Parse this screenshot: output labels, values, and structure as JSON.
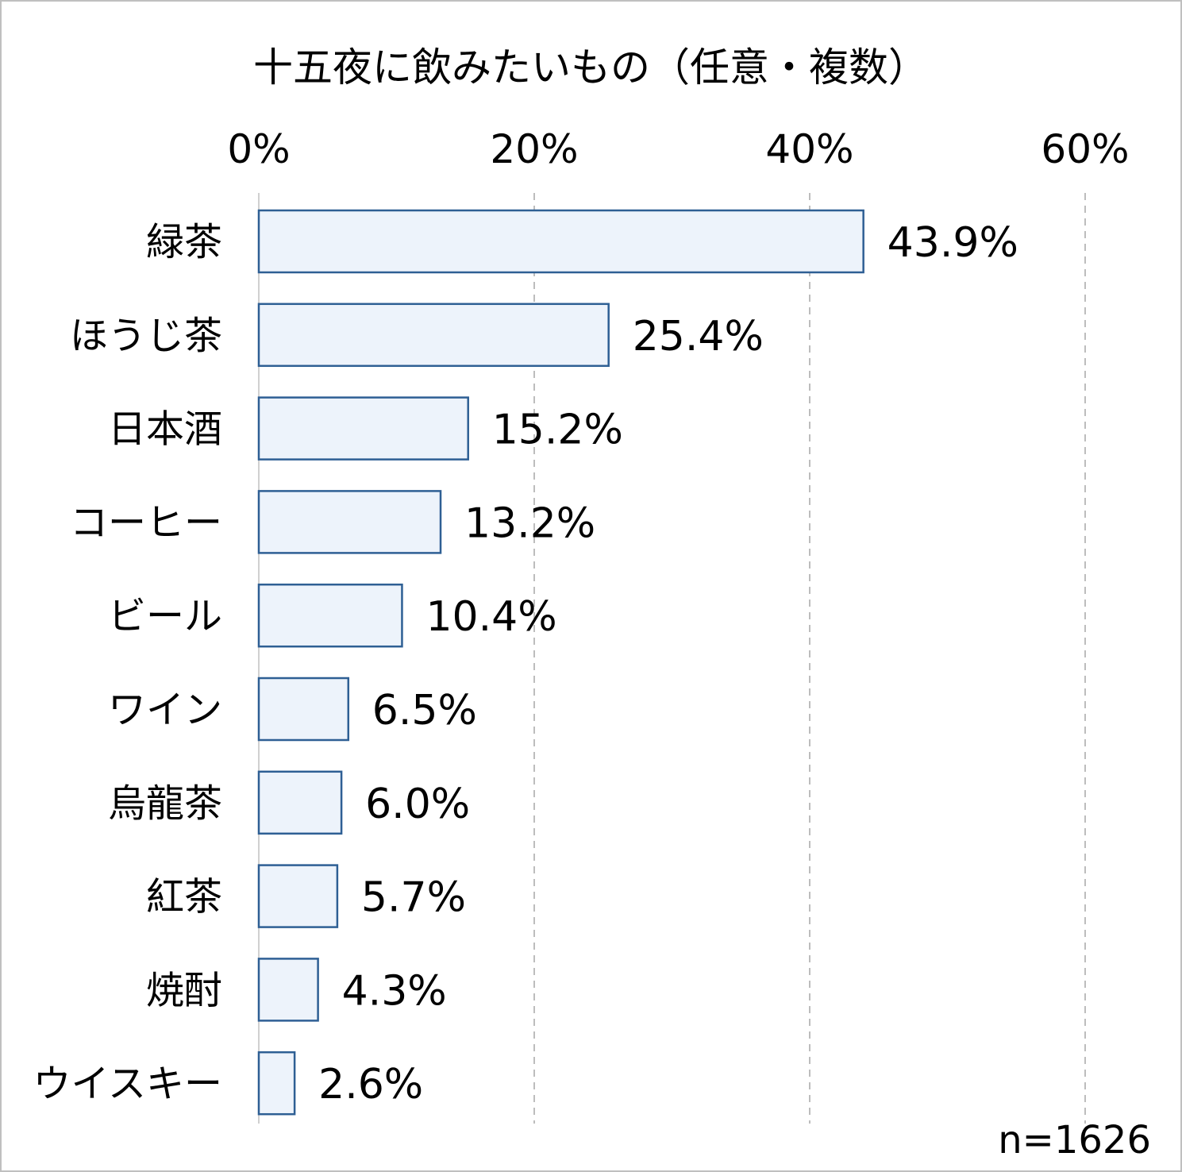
{
  "chart_data": {
    "type": "bar",
    "orientation": "horizontal",
    "title": "十五夜に飲みたいもの（任意・複数）",
    "categories": [
      "緑茶",
      "ほうじ茶",
      "日本酒",
      "コーヒー",
      "ビール",
      "ワイン",
      "烏龍茶",
      "紅茶",
      "焼酎",
      "ウイスキー"
    ],
    "values": [
      43.9,
      25.4,
      15.2,
      13.2,
      10.4,
      6.5,
      6.0,
      5.7,
      4.3,
      2.6
    ],
    "value_labels": [
      "43.9%",
      "25.4%",
      "15.2%",
      "13.2%",
      "10.4%",
      "6.5%",
      "6.0%",
      "5.7%",
      "4.3%",
      "2.6%"
    ],
    "xlim": [
      0,
      60
    ],
    "xticks": [
      0,
      20,
      40,
      60
    ],
    "xtick_labels": [
      "0%",
      "20%",
      "40%",
      "60%"
    ],
    "axis_position": "top",
    "grid": true,
    "grid_style": "dashed",
    "legend": "none",
    "sample_note": "n=1626",
    "colors": {
      "bar_fill": "#edf3fb",
      "bar_stroke": "#2e5f94",
      "grid": "#bdbdbd",
      "axis": "#d0d0d0",
      "frame": "#bfbfbf"
    }
  }
}
